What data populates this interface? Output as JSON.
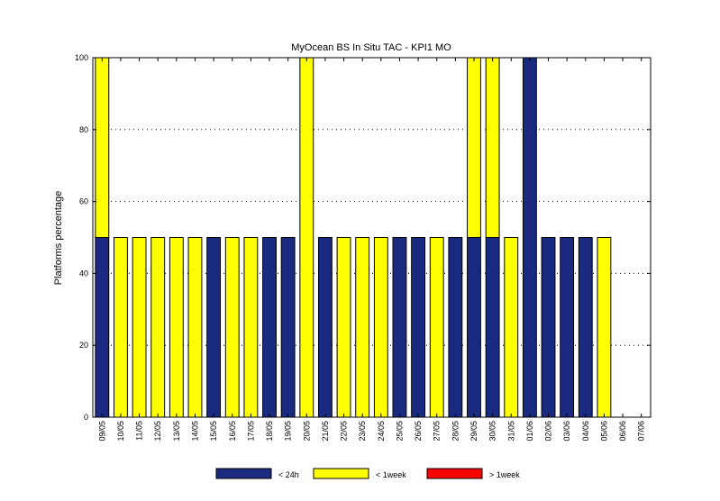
{
  "chart_data": {
    "type": "bar",
    "stacked": true,
    "title": "MyOcean  BS In Situ TAC - KPI1  MO",
    "xlabel": "",
    "ylabel": "Platforms percentage",
    "ylim": [
      0,
      100
    ],
    "yticks": [
      0,
      20,
      40,
      60,
      80,
      100
    ],
    "grid": "horizontal dotted",
    "legend_position": "bottom",
    "categories": [
      "09/05",
      "10/05",
      "11/05",
      "12/05",
      "13/05",
      "14/05",
      "15/05",
      "16/05",
      "17/05",
      "18/05",
      "19/05",
      "20/05",
      "21/05",
      "22/05",
      "23/05",
      "24/05",
      "25/05",
      "26/05",
      "27/05",
      "28/05",
      "29/05",
      "30/05",
      "31/05",
      "01/06",
      "02/06",
      "03/06",
      "04/06",
      "05/06",
      "06/06",
      "07/06"
    ],
    "series": [
      {
        "name": "< 24h",
        "color": "#1a2a80",
        "values": [
          50,
          0,
          0,
          0,
          0,
          0,
          50,
          0,
          0,
          50,
          50,
          0,
          50,
          0,
          0,
          0,
          50,
          50,
          0,
          50,
          50,
          50,
          0,
          100,
          50,
          50,
          50,
          0,
          0,
          0
        ]
      },
      {
        "name": "< 1week",
        "color": "#ffff00",
        "values": [
          50,
          50,
          50,
          50,
          50,
          50,
          0,
          50,
          50,
          0,
          0,
          100,
          0,
          50,
          50,
          50,
          0,
          0,
          50,
          0,
          50,
          50,
          50,
          0,
          0,
          0,
          0,
          50,
          0,
          0
        ]
      },
      {
        "name": "> 1week",
        "color": "#ff0000",
        "values": [
          0,
          0,
          0,
          0,
          0,
          0,
          0,
          0,
          0,
          0,
          0,
          0,
          0,
          0,
          0,
          0,
          0,
          0,
          0,
          0,
          0,
          0,
          0,
          0,
          0,
          0,
          0,
          0,
          0,
          0
        ]
      }
    ]
  }
}
